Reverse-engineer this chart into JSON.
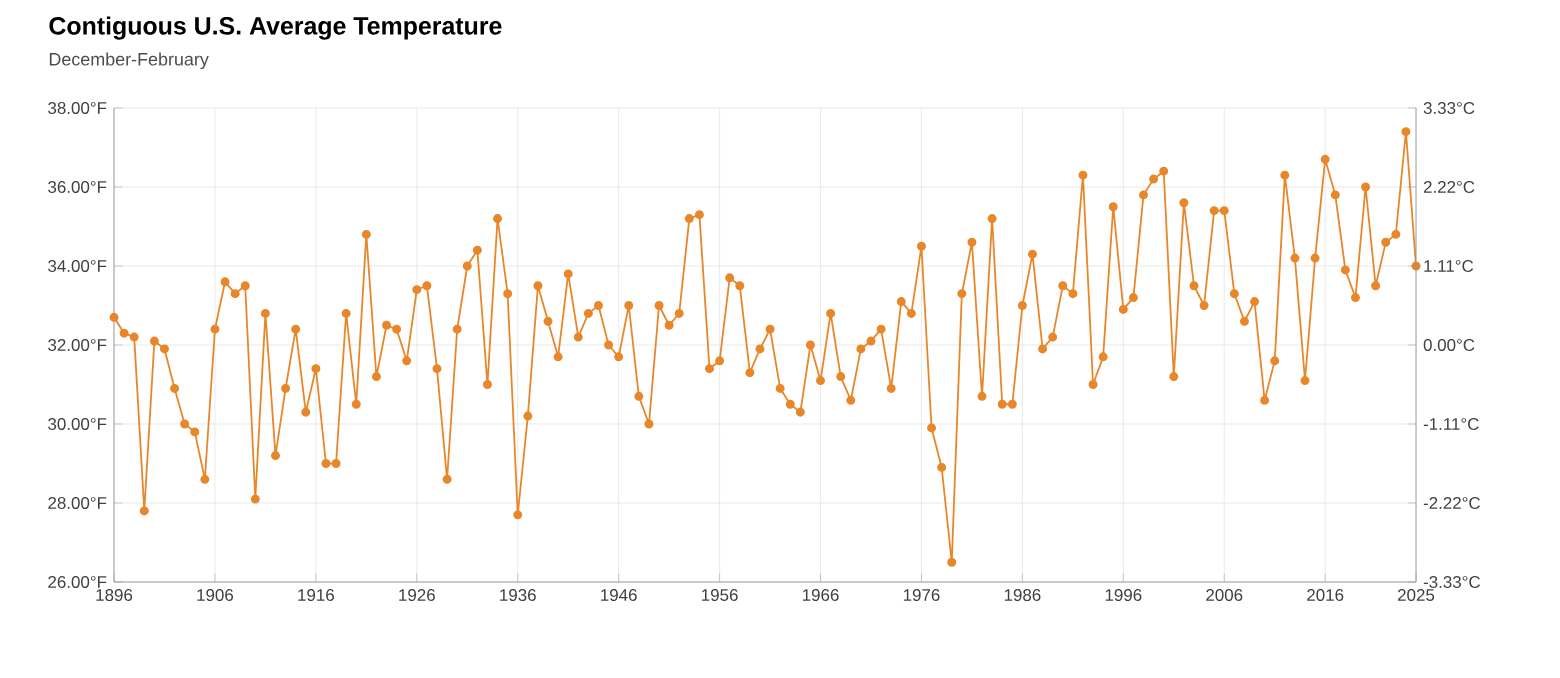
{
  "chart_data": {
    "type": "line",
    "title": "Contiguous U.S. Average Temperature",
    "subtitle": "December-February",
    "x": [
      1896,
      1897,
      1898,
      1899,
      1900,
      1901,
      1902,
      1903,
      1904,
      1905,
      1906,
      1907,
      1908,
      1909,
      1910,
      1911,
      1912,
      1913,
      1914,
      1915,
      1916,
      1917,
      1918,
      1919,
      1920,
      1921,
      1922,
      1923,
      1924,
      1925,
      1926,
      1927,
      1928,
      1929,
      1930,
      1931,
      1932,
      1933,
      1934,
      1935,
      1936,
      1937,
      1938,
      1939,
      1940,
      1941,
      1942,
      1943,
      1944,
      1945,
      1946,
      1947,
      1948,
      1949,
      1950,
      1951,
      1952,
      1953,
      1954,
      1955,
      1956,
      1957,
      1958,
      1959,
      1960,
      1961,
      1962,
      1963,
      1964,
      1965,
      1966,
      1967,
      1968,
      1969,
      1970,
      1971,
      1972,
      1973,
      1974,
      1975,
      1976,
      1977,
      1978,
      1979,
      1980,
      1981,
      1982,
      1983,
      1984,
      1985,
      1986,
      1987,
      1988,
      1989,
      1990,
      1991,
      1992,
      1993,
      1994,
      1995,
      1996,
      1997,
      1998,
      1999,
      2000,
      2001,
      2002,
      2003,
      2004,
      2005,
      2006,
      2007,
      2008,
      2009,
      2010,
      2011,
      2012,
      2013,
      2014,
      2015,
      2016,
      2017,
      2018,
      2019,
      2020,
      2021,
      2022,
      2023,
      2024,
      2025
    ],
    "series": [
      {
        "color": "#e8872a",
        "values": [
          32.7,
          32.3,
          32.2,
          27.8,
          32.1,
          31.9,
          30.9,
          30.0,
          29.8,
          28.6,
          32.4,
          33.6,
          33.3,
          33.5,
          28.1,
          32.8,
          29.2,
          30.9,
          32.4,
          30.3,
          31.4,
          29.0,
          29.0,
          32.8,
          30.5,
          34.8,
          31.2,
          32.5,
          32.4,
          31.6,
          33.4,
          33.5,
          31.4,
          28.6,
          32.4,
          34.0,
          34.4,
          31.0,
          35.2,
          33.3,
          27.7,
          30.2,
          33.5,
          32.6,
          31.7,
          33.8,
          32.2,
          32.8,
          33.0,
          32.0,
          31.7,
          33.0,
          30.7,
          30.0,
          33.0,
          32.5,
          32.8,
          35.2,
          35.3,
          31.4,
          31.6,
          33.7,
          33.5,
          31.3,
          31.9,
          32.4,
          30.9,
          30.5,
          30.3,
          32.0,
          31.1,
          32.8,
          31.2,
          30.6,
          31.9,
          32.1,
          32.4,
          30.9,
          33.1,
          32.8,
          34.5,
          29.9,
          28.9,
          26.5,
          33.3,
          34.6,
          30.7,
          35.2,
          30.5,
          30.5,
          33.0,
          34.3,
          31.9,
          32.2,
          33.5,
          33.3,
          36.3,
          31.0,
          31.7,
          35.5,
          32.9,
          33.2,
          35.8,
          36.2,
          36.4,
          31.2,
          35.6,
          33.5,
          33.0,
          35.4,
          35.4,
          33.3,
          32.6,
          33.1,
          30.6,
          31.6,
          36.3,
          34.2,
          31.1,
          34.2,
          36.7,
          35.8,
          33.9,
          33.2,
          36.0,
          33.5,
          34.6,
          34.8,
          37.4,
          34.0
        ]
      }
    ],
    "xlim": [
      1896,
      2025
    ],
    "xticks": [
      1896,
      1906,
      1916,
      1926,
      1936,
      1946,
      1956,
      1966,
      1976,
      1986,
      1996,
      2006,
      2016,
      2025
    ],
    "ylim": [
      26,
      38
    ],
    "yticks": [
      {
        "value": 26,
        "label": "26.00°F"
      },
      {
        "value": 28,
        "label": "28.00°F"
      },
      {
        "value": 30,
        "label": "30.00°F"
      },
      {
        "value": 32,
        "label": "32.00°F"
      },
      {
        "value": 34,
        "label": "34.00°F"
      },
      {
        "value": 36,
        "label": "36.00°F"
      },
      {
        "value": 38,
        "label": "38.00°F"
      }
    ],
    "y2lim": [
      -3.33,
      3.33
    ],
    "y2ticks": [
      {
        "value": -3.33,
        "label": "-3.33°C"
      },
      {
        "value": -2.22,
        "label": "-2.22°C"
      },
      {
        "value": -1.11,
        "label": "-1.11°C"
      },
      {
        "value": 0,
        "label": "0.00°C"
      },
      {
        "value": 1.11,
        "label": "1.11°C"
      },
      {
        "value": 2.22,
        "label": "2.22°C"
      },
      {
        "value": 3.33,
        "label": "3.33°C"
      }
    ],
    "grid": true,
    "marker": "circle",
    "line_style": "solid"
  }
}
